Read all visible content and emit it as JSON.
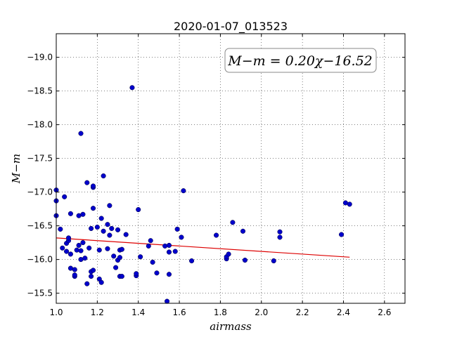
{
  "chart_data": {
    "type": "scatter",
    "title": "2020-01-07_013523",
    "xlabel": "airmass",
    "ylabel": "M−m",
    "xlim": [
      1.0,
      2.7
    ],
    "ylim": [
      -19.35,
      -15.35
    ],
    "y_inverted": true,
    "x_ticks": [
      1.0,
      1.2,
      1.4,
      1.6,
      1.8,
      2.0,
      2.2,
      2.4,
      2.6
    ],
    "x_tick_labels": [
      "1.0",
      "1.2",
      "1.4",
      "1.6",
      "1.8",
      "2.0",
      "2.2",
      "2.4",
      "2.6"
    ],
    "y_ticks": [
      -15.5,
      -16.0,
      -16.5,
      -17.0,
      -17.5,
      -18.0,
      -18.5,
      -19.0
    ],
    "y_tick_labels": [
      "−15.5",
      "−16.0",
      "−16.5",
      "−17.0",
      "−17.5",
      "−18.0",
      "−18.5",
      "−19.0"
    ],
    "grid": true,
    "point_color": "#0000cc",
    "fit_color": "#dd0000",
    "annotation": "M−m = 0.20χ−16.52",
    "fit": {
      "slope": 0.2,
      "intercept": -16.52,
      "x_range": [
        1.0,
        2.43
      ]
    },
    "points": [
      [
        1.0,
        -16.65
      ],
      [
        1.0,
        -16.87
      ],
      [
        1.0,
        -17.03
      ],
      [
        1.02,
        -16.45
      ],
      [
        1.03,
        -16.17
      ],
      [
        1.04,
        -16.93
      ],
      [
        1.05,
        -16.12
      ],
      [
        1.05,
        -16.24
      ],
      [
        1.06,
        -16.28
      ],
      [
        1.06,
        -16.32
      ],
      [
        1.07,
        -16.08
      ],
      [
        1.07,
        -16.68
      ],
      [
        1.07,
        -15.87
      ],
      [
        1.09,
        -15.85
      ],
      [
        1.09,
        -15.75
      ],
      [
        1.09,
        -15.77
      ],
      [
        1.1,
        -16.14
      ],
      [
        1.11,
        -16.65
      ],
      [
        1.11,
        -16.21
      ],
      [
        1.12,
        -16.13
      ],
      [
        1.12,
        -16.0
      ],
      [
        1.12,
        -17.87
      ],
      [
        1.13,
        -16.67
      ],
      [
        1.13,
        -16.25
      ],
      [
        1.14,
        -16.02
      ],
      [
        1.15,
        -15.64
      ],
      [
        1.15,
        -17.14
      ],
      [
        1.16,
        -16.17
      ],
      [
        1.17,
        -15.75
      ],
      [
        1.17,
        -15.82
      ],
      [
        1.17,
        -16.46
      ],
      [
        1.18,
        -15.84
      ],
      [
        1.18,
        -16.76
      ],
      [
        1.18,
        -17.07
      ],
      [
        1.18,
        -17.09
      ],
      [
        1.2,
        -16.48
      ],
      [
        1.21,
        -16.14
      ],
      [
        1.21,
        -15.71
      ],
      [
        1.22,
        -16.61
      ],
      [
        1.22,
        -15.66
      ],
      [
        1.23,
        -16.42
      ],
      [
        1.23,
        -17.24
      ],
      [
        1.25,
        -16.16
      ],
      [
        1.25,
        -16.52
      ],
      [
        1.26,
        -16.36
      ],
      [
        1.26,
        -16.8
      ],
      [
        1.27,
        -16.46
      ],
      [
        1.28,
        -16.05
      ],
      [
        1.29,
        -15.88
      ],
      [
        1.3,
        -16.44
      ],
      [
        1.3,
        -15.99
      ],
      [
        1.31,
        -16.03
      ],
      [
        1.31,
        -16.14
      ],
      [
        1.31,
        -15.75
      ],
      [
        1.32,
        -16.15
      ],
      [
        1.32,
        -15.75
      ],
      [
        1.34,
        -16.37
      ],
      [
        1.37,
        -18.55
      ],
      [
        1.39,
        -15.76
      ],
      [
        1.39,
        -15.79
      ],
      [
        1.4,
        -16.74
      ],
      [
        1.41,
        -16.04
      ],
      [
        1.45,
        -16.2
      ],
      [
        1.46,
        -16.28
      ],
      [
        1.47,
        -15.96
      ],
      [
        1.49,
        -15.8
      ],
      [
        1.53,
        -16.2
      ],
      [
        1.54,
        -15.38
      ],
      [
        1.55,
        -16.11
      ],
      [
        1.55,
        -16.21
      ],
      [
        1.55,
        -15.78
      ],
      [
        1.58,
        -16.12
      ],
      [
        1.59,
        -16.45
      ],
      [
        1.61,
        -16.33
      ],
      [
        1.62,
        -17.02
      ],
      [
        1.66,
        -15.98
      ],
      [
        1.78,
        -16.36
      ],
      [
        1.83,
        -16.01
      ],
      [
        1.83,
        -16.04
      ],
      [
        1.84,
        -16.08
      ],
      [
        1.86,
        -16.55
      ],
      [
        1.91,
        -16.42
      ],
      [
        1.92,
        -15.99
      ],
      [
        2.06,
        -15.98
      ],
      [
        2.09,
        -16.33
      ],
      [
        2.09,
        -16.41
      ],
      [
        2.39,
        -16.37
      ],
      [
        2.41,
        -16.84
      ],
      [
        2.43,
        -16.82
      ]
    ]
  }
}
